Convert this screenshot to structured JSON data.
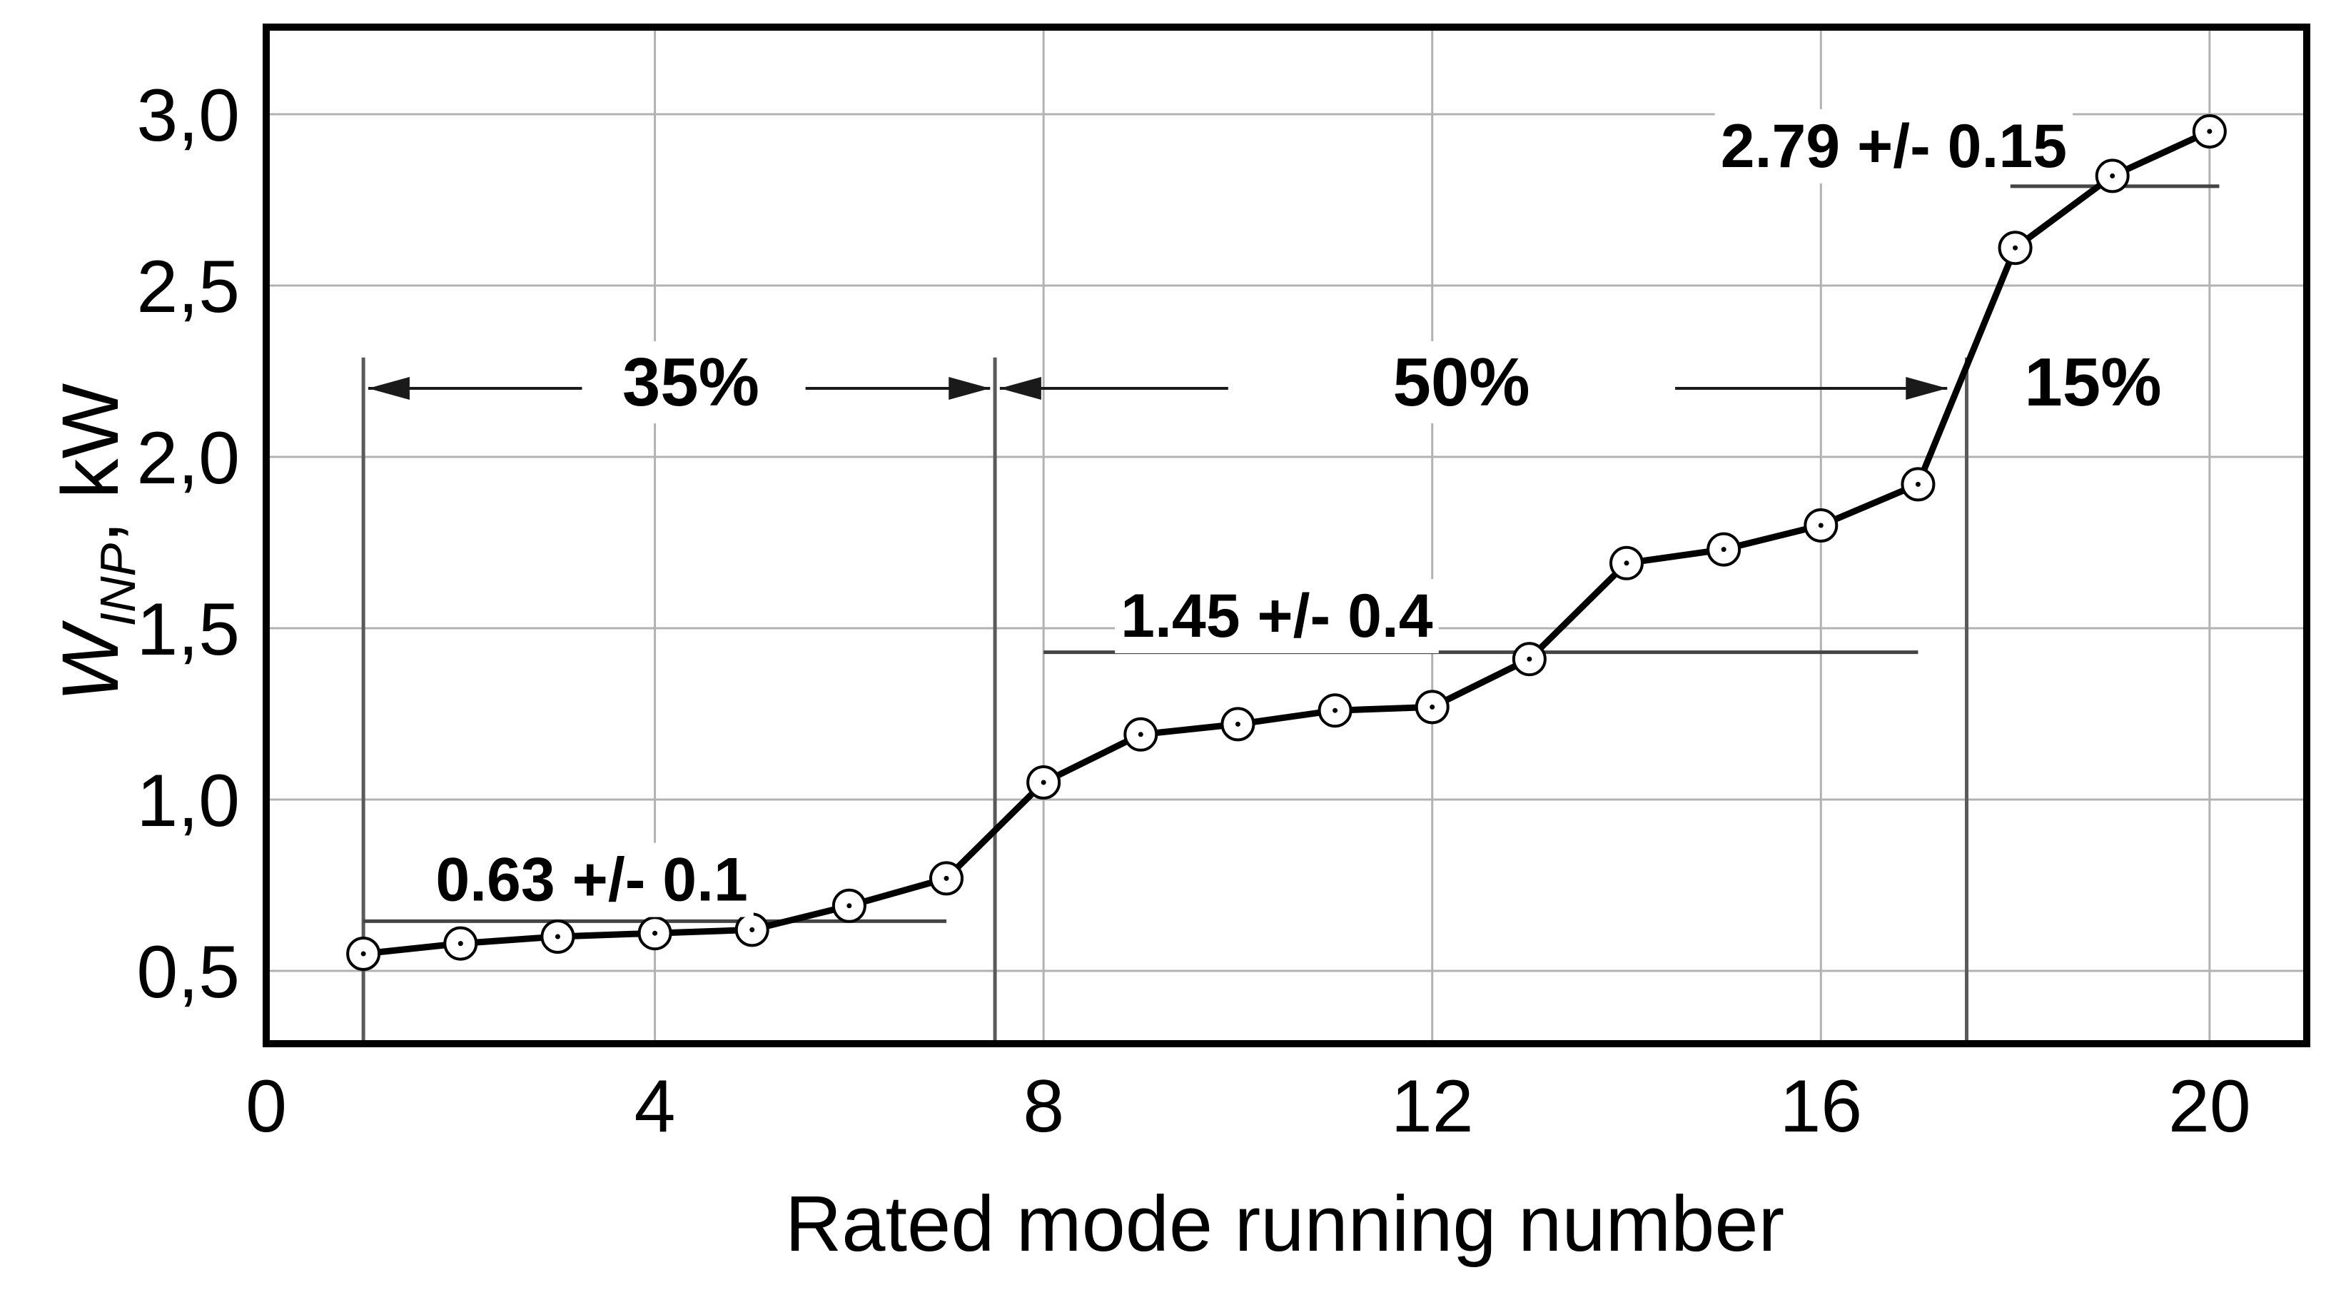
{
  "figure": {
    "background": "#ffffff"
  },
  "chart_data": {
    "type": "line",
    "title": "",
    "xlabel": "Rated mode running number",
    "ylabel": {
      "symbol": "W",
      "subscript": "INP",
      "unit": ", kW"
    },
    "x": [
      1,
      2,
      3,
      4,
      5,
      6,
      7,
      8,
      9,
      10,
      11,
      12,
      13,
      14,
      15,
      16,
      17,
      18,
      19,
      20
    ],
    "values": [
      0.55,
      0.58,
      0.6,
      0.61,
      0.62,
      0.69,
      0.77,
      1.05,
      1.19,
      1.22,
      1.26,
      1.27,
      1.41,
      1.69,
      1.73,
      1.8,
      1.92,
      2.61,
      2.82,
      2.95
    ],
    "xticks": [
      {
        "v": 0,
        "label": "0"
      },
      {
        "v": 4,
        "label": "4"
      },
      {
        "v": 8,
        "label": "8"
      },
      {
        "v": 12,
        "label": "12"
      },
      {
        "v": 16,
        "label": "16"
      },
      {
        "v": 20,
        "label": "20"
      }
    ],
    "yticks": [
      {
        "v": 0.5,
        "label": "0,5"
      },
      {
        "v": 1.0,
        "label": "1,0"
      },
      {
        "v": 1.5,
        "label": "1,5"
      },
      {
        "v": 2.0,
        "label": "2,0"
      },
      {
        "v": 2.5,
        "label": "2,5"
      },
      {
        "v": 3.0,
        "label": "3,0"
      }
    ],
    "xlim": [
      0,
      21.0
    ],
    "ylim": [
      0.2875,
      3.2542
    ],
    "grid": true,
    "legend": "none",
    "marker": "open-circle-with-center-dot",
    "region_dividers": [
      {
        "x": 1.0,
        "v_top": 2.29
      },
      {
        "x": 7.5,
        "v_top": 2.29
      },
      {
        "x": 17.5,
        "v_top": 2.29
      }
    ],
    "region_labels": [
      {
        "text": "35%",
        "x": 4.37,
        "baseline_v": 2.15
      },
      {
        "text": "50%",
        "x": 12.3,
        "baseline_v": 2.15
      },
      {
        "text": "15%",
        "x": 18.8,
        "baseline_v": 2.15
      }
    ],
    "dimension_lines": [
      {
        "x1": 1.05,
        "x2": 3.25,
        "v": 2.2,
        "head": "left"
      },
      {
        "x1": 5.55,
        "x2": 7.45,
        "v": 2.2,
        "head": "right"
      },
      {
        "x1": 7.55,
        "x2": 9.9,
        "v": 2.2,
        "head": "left"
      },
      {
        "x1": 14.5,
        "x2": 17.3,
        "v": 2.2,
        "head": "right"
      }
    ],
    "ref_lines": [
      {
        "text": "0.63 +/-  0.1",
        "v": 0.645,
        "x1": 1.0,
        "x2": 7.0,
        "label_x": 3.35,
        "label_baseline_v": 0.705
      },
      {
        "text": "1.45 +/-  0.4",
        "v": 1.43,
        "x1": 8.0,
        "x2": 17.0,
        "label_x": 10.4,
        "label_baseline_v": 1.475
      },
      {
        "text": "2.79 +/-  0.15",
        "v": 2.79,
        "x1": 17.95,
        "x2": 20.1,
        "label_x": 16.75,
        "label_baseline_v": 2.846
      }
    ],
    "colors": {
      "ink": "#000000",
      "grid": "#b2b2b2",
      "divider": "#5a5a5a",
      "ref_line": "#444444",
      "dimension": "#1a1a1a",
      "marker_fill": "#ffffff",
      "background": "#ffffff"
    }
  }
}
